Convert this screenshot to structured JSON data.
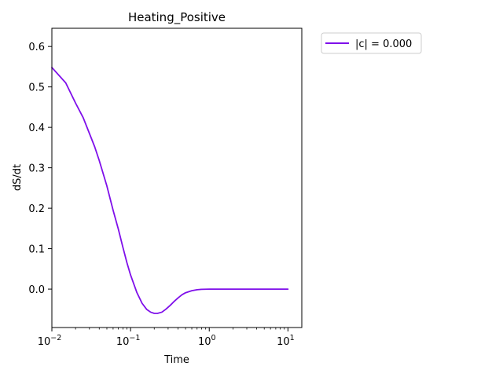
{
  "chart_data": {
    "type": "line",
    "title": "Heating_Positive",
    "xlabel": "Time",
    "ylabel": "dS/dt",
    "xscale": "log",
    "xlim": [
      0.01,
      15
    ],
    "ylim": [
      -0.095,
      0.645
    ],
    "x_ticks": [
      {
        "value": 0.01,
        "base": "10",
        "exp": "−2"
      },
      {
        "value": 0.1,
        "base": "10",
        "exp": "−1"
      },
      {
        "value": 1,
        "base": "10",
        "exp": "0"
      },
      {
        "value": 10,
        "base": "10",
        "exp": "1"
      }
    ],
    "y_ticks": [
      {
        "value": 0.0,
        "label": "0.0"
      },
      {
        "value": 0.1,
        "label": "0.1"
      },
      {
        "value": 0.2,
        "label": "0.2"
      },
      {
        "value": 0.3,
        "label": "0.3"
      },
      {
        "value": 0.4,
        "label": "0.4"
      },
      {
        "value": 0.5,
        "label": "0.5"
      },
      {
        "value": 0.6,
        "label": "0.6"
      }
    ],
    "grid": false,
    "legend_placement": "outside-upper-right",
    "series": [
      {
        "name": "|c| = 0.000",
        "color": "#7F0FEA",
        "x": [
          0.01,
          0.015,
          0.02,
          0.025,
          0.03,
          0.035,
          0.04,
          0.05,
          0.06,
          0.07,
          0.08,
          0.09,
          0.1,
          0.12,
          0.14,
          0.16,
          0.18,
          0.2,
          0.22,
          0.25,
          0.28,
          0.32,
          0.36,
          0.4,
          0.45,
          0.5,
          0.6,
          0.7,
          0.8,
          1.0,
          1.2,
          1.5,
          2.0,
          3.0,
          5.0,
          10.0
        ],
        "y": [
          0.548,
          0.51,
          0.46,
          0.424,
          0.385,
          0.352,
          0.318,
          0.255,
          0.195,
          0.148,
          0.103,
          0.065,
          0.035,
          -0.008,
          -0.035,
          -0.05,
          -0.057,
          -0.06,
          -0.06,
          -0.057,
          -0.05,
          -0.04,
          -0.03,
          -0.022,
          -0.014,
          -0.009,
          -0.004,
          -0.0015,
          -0.0005,
          0.0,
          0.0,
          0.0,
          0.0,
          0.0,
          0.0,
          0.0
        ]
      }
    ]
  }
}
